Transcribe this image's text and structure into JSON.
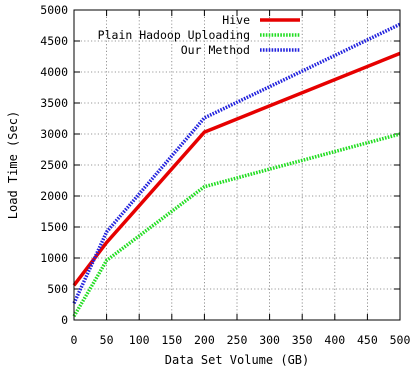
{
  "chart_data": {
    "type": "line",
    "xlabel": "Data Set Volume (GB)",
    "ylabel": "Load Time (Sec)",
    "xlim": [
      0,
      500
    ],
    "ylim": [
      0,
      5000
    ],
    "xticks": [
      0,
      50,
      100,
      150,
      200,
      250,
      300,
      350,
      400,
      450,
      500
    ],
    "yticks": [
      0,
      500,
      1000,
      1500,
      2000,
      2500,
      3000,
      3500,
      4000,
      4500,
      5000
    ],
    "grid": true,
    "legend_position": "top-right",
    "series": [
      {
        "name": "Hive",
        "color": "#e60000",
        "style": "solid",
        "x": [
          0,
          50,
          200,
          500
        ],
        "y": [
          560,
          1250,
          3030,
          4300
        ]
      },
      {
        "name": "Plain Hadoop Uploading",
        "color": "#22dd22",
        "style": "dotted",
        "x": [
          0,
          50,
          200,
          500
        ],
        "y": [
          60,
          960,
          2150,
          3000
        ]
      },
      {
        "name": "Our Method",
        "color": "#2222dd",
        "style": "dotted",
        "x": [
          0,
          50,
          200,
          500
        ],
        "y": [
          270,
          1420,
          3260,
          4770
        ]
      }
    ]
  }
}
